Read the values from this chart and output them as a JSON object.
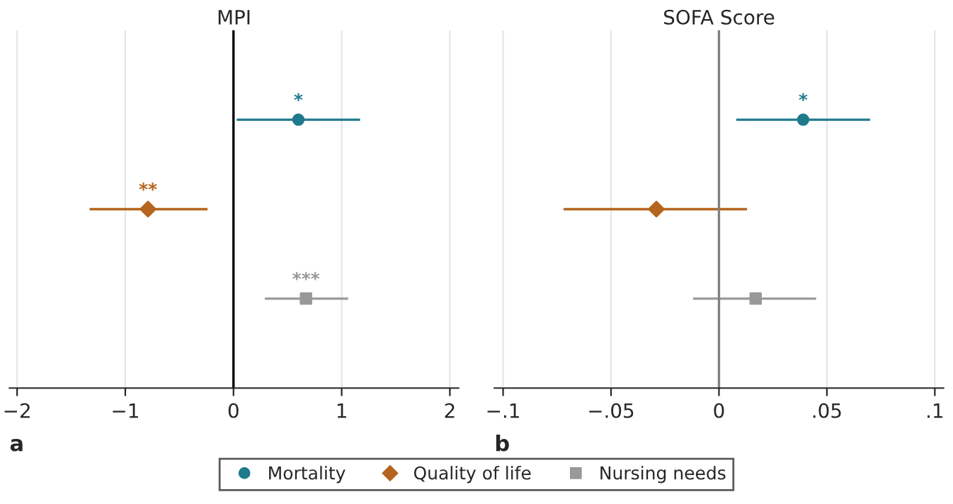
{
  "chart_data": [
    {
      "type": "scatter",
      "title": "MPI",
      "orientation": "horizontal",
      "categories": [
        null,
        null,
        null
      ],
      "series": [
        {
          "name": "Mortality",
          "color": "#1f7a8c",
          "marker": "circle",
          "values": [
            0.6,
            null,
            null
          ],
          "errors": [
            [
              0.03,
              1.17
            ],
            null,
            null
          ],
          "value_labels": [
            "*",
            null,
            null
          ]
        },
        {
          "name": "Quality of life",
          "color": "#b5651d",
          "marker": "diamond",
          "values": [
            null,
            -0.79,
            null
          ],
          "errors": [
            null,
            [
              -1.33,
              -0.24
            ],
            null
          ],
          "value_labels": [
            null,
            "**",
            null
          ]
        },
        {
          "name": "Nursing needs",
          "color": "#999999",
          "marker": "square",
          "values": [
            null,
            null,
            0.67
          ],
          "errors": [
            null,
            null,
            [
              0.29,
              1.06
            ]
          ],
          "value_labels": [
            null,
            null,
            "***"
          ]
        }
      ],
      "xlim": [
        -2.07,
        2.08
      ],
      "xticks": [
        {
          "value": -2,
          "label": "−2"
        },
        {
          "value": -1,
          "label": "−1"
        },
        0,
        1,
        2
      ],
      "ref_lines": [
        {
          "axis": "x",
          "value": 0,
          "color": "#000000"
        }
      ],
      "annotations": [
        "a"
      ],
      "grid": "x",
      "legend": "bottom",
      "tick_labels": "x"
    },
    {
      "type": "scatter",
      "title": "SOFA Score",
      "orientation": "horizontal",
      "categories": [
        null,
        null,
        null
      ],
      "series": [
        {
          "color": "#1f7a8c",
          "marker": "circle",
          "values": [
            0.039,
            null,
            null
          ],
          "errors": [
            [
              0.008,
              0.07
            ],
            null,
            null
          ],
          "value_labels": [
            "*",
            null,
            null
          ]
        },
        {
          "color": "#b5651d",
          "marker": "diamond",
          "values": [
            null,
            -0.029,
            null
          ],
          "errors": [
            null,
            [
              -0.072,
              0.013
            ],
            null
          ]
        },
        {
          "color": "#999999",
          "marker": "square",
          "values": [
            null,
            null,
            0.017
          ],
          "errors": [
            null,
            null,
            [
              -0.012,
              0.045
            ]
          ]
        }
      ],
      "xlim": [
        -0.104,
        0.104
      ],
      "xticks": [
        {
          "value": -0.1,
          "label": "−.1"
        },
        {
          "value": -0.05,
          "label": "−.05"
        },
        0,
        {
          "value": 0.05,
          "label": ".05"
        },
        {
          "value": 0.1,
          "label": ".1"
        }
      ],
      "ref_lines": [
        {
          "axis": "x",
          "value": 0,
          "color": "#808080"
        }
      ],
      "annotations": [
        "b"
      ],
      "grid": "x",
      "legend": false,
      "tick_labels": "x"
    }
  ]
}
